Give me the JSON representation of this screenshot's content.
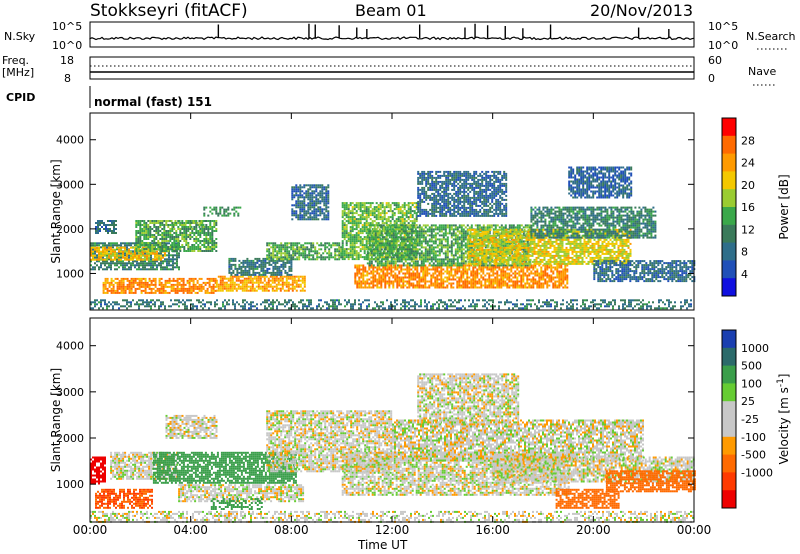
{
  "header": {
    "station": "Stokkseyri (fitACF)",
    "beam": "Beam 01",
    "date": "20/Nov/2013"
  },
  "top_panels": {
    "nsky_label": "N.Sky",
    "nsky_ticks": [
      "10^5",
      "10^0"
    ],
    "nsearch_label": "N.Search",
    "nsearch_ticks": [
      "10^5",
      "10^0"
    ],
    "freq_label_1": "Freq.",
    "freq_label_2": "[MHz]",
    "freq_ticks": [
      "18",
      "8"
    ],
    "nave_label": "Nave",
    "nave_ticks": [
      "60",
      "0"
    ],
    "cpid_label": "CPID",
    "cpid_value": "normal (fast) 151",
    "nsky_spikes": [
      {
        "x": 5.1,
        "v": 0.9
      },
      {
        "x": 8.7,
        "v": 0.95
      },
      {
        "x": 8.95,
        "v": 0.9
      },
      {
        "x": 9.9,
        "v": 0.85
      },
      {
        "x": 10.6,
        "v": 0.7
      },
      {
        "x": 11.0,
        "v": 0.6
      },
      {
        "x": 13.1,
        "v": 0.9
      },
      {
        "x": 14.9,
        "v": 0.7
      },
      {
        "x": 15.3,
        "v": 0.95
      },
      {
        "x": 15.8,
        "v": 0.85
      },
      {
        "x": 16.5,
        "v": 0.8
      },
      {
        "x": 17.2,
        "v": 0.65
      },
      {
        "x": 18.3,
        "v": 0.9
      },
      {
        "x": 21.8,
        "v": 0.7
      },
      {
        "x": 23.0,
        "v": 0.6
      }
    ]
  },
  "power_scale": {
    "label": "Power [dB]",
    "ticks": [
      "28",
      "24",
      "20",
      "16",
      "12",
      "8",
      "4"
    ],
    "colors": [
      "#ff0000",
      "#ff6a00",
      "#ff9a00",
      "#f4c800",
      "#9acc32",
      "#3aa84a",
      "#3a7a5a",
      "#2f6e8a",
      "#2050b8",
      "#1010e0"
    ]
  },
  "velocity_scale": {
    "label": "Velocity [m s^-1]",
    "ticks": [
      "1000",
      "500",
      "100",
      "25",
      "-25",
      "-100",
      "-500",
      "-1000"
    ],
    "colors": [
      "#1a3fb0",
      "#2b6a6a",
      "#3a9e4a",
      "#66cc33",
      "#c8c8c8",
      "#c8c8c8",
      "#ff9a00",
      "#ff6a00",
      "#ff3a00",
      "#ee0000"
    ]
  },
  "chart_data": [
    {
      "type": "heatmap",
      "title": "Power",
      "xlabel": "Time UT",
      "ylabel": "Slant Range [km]",
      "xlim": [
        0,
        24
      ],
      "ylim": [
        180,
        4600
      ],
      "xticks": [
        "00:00",
        "04:00",
        "08:00",
        "12:00",
        "16:00",
        "20:00",
        "00:00"
      ],
      "yticks": [
        "1000",
        "2000",
        "3000",
        "4000"
      ],
      "colorbar": {
        "label": "Power [dB]",
        "range": [
          0,
          32
        ]
      },
      "regions": [
        {
          "t0": 0.0,
          "t1": 3.5,
          "r0": 1100,
          "r1": 1700,
          "v": 10
        },
        {
          "t0": 0.0,
          "t1": 3.0,
          "r0": 1300,
          "r1": 1600,
          "v": 22
        },
        {
          "t0": 0.5,
          "t1": 5.0,
          "r0": 550,
          "r1": 900,
          "v": 26
        },
        {
          "t0": 0.2,
          "t1": 1.0,
          "r0": 1900,
          "r1": 2200,
          "v": 8
        },
        {
          "t0": 1.8,
          "t1": 5.0,
          "r0": 1500,
          "r1": 2200,
          "v": 14
        },
        {
          "t0": 3.2,
          "t1": 4.6,
          "r0": 2050,
          "r1": 2200,
          "v": 16
        },
        {
          "t0": 4.5,
          "t1": 6.0,
          "r0": 2300,
          "r1": 2500,
          "v": 12
        },
        {
          "t0": 5.0,
          "t1": 8.5,
          "r0": 600,
          "r1": 950,
          "v": 24
        },
        {
          "t0": 5.5,
          "t1": 8.0,
          "r0": 950,
          "r1": 1350,
          "v": 9
        },
        {
          "t0": 7.0,
          "t1": 10.0,
          "r0": 1300,
          "r1": 1700,
          "v": 14
        },
        {
          "t0": 8.0,
          "t1": 9.5,
          "r0": 2200,
          "r1": 3000,
          "v": 7
        },
        {
          "t0": 10.0,
          "t1": 13.0,
          "r0": 1300,
          "r1": 2600,
          "v": 16
        },
        {
          "t0": 10.5,
          "t1": 19.0,
          "r0": 700,
          "r1": 1200,
          "v": 26
        },
        {
          "t0": 11.0,
          "t1": 17.5,
          "r0": 1200,
          "r1": 2100,
          "v": 14
        },
        {
          "t0": 13.0,
          "t1": 16.5,
          "r0": 2300,
          "r1": 3300,
          "v": 7
        },
        {
          "t0": 15.0,
          "t1": 21.5,
          "r0": 1200,
          "r1": 2000,
          "v": 20
        },
        {
          "t0": 17.5,
          "t1": 22.5,
          "r0": 1800,
          "r1": 2500,
          "v": 10
        },
        {
          "t0": 19.0,
          "t1": 21.5,
          "r0": 2700,
          "r1": 3400,
          "v": 6
        },
        {
          "t0": 20.0,
          "t1": 24.0,
          "r0": 850,
          "r1": 1300,
          "v": 7
        },
        {
          "t0": 0.0,
          "t1": 24.0,
          "r0": 200,
          "r1": 420,
          "v": 9
        }
      ]
    },
    {
      "type": "heatmap",
      "title": "Velocity",
      "xlabel": "Time UT",
      "ylabel": "Slant Range [km]",
      "xlim": [
        0,
        24
      ],
      "ylim": [
        180,
        4600
      ],
      "xticks": [
        "00:00",
        "04:00",
        "08:00",
        "12:00",
        "16:00",
        "20:00",
        "00:00"
      ],
      "yticks": [
        "1000",
        "2000",
        "3000",
        "4000"
      ],
      "colorbar": {
        "label": "Velocity [m s^-1]",
        "range": [
          -1000,
          1000
        ]
      },
      "regions": [
        {
          "t0": 0.0,
          "t1": 0.6,
          "r0": 1000,
          "r1": 1600,
          "v": -900
        },
        {
          "t0": 0.2,
          "t1": 2.5,
          "r0": 500,
          "r1": 900,
          "v": -500
        },
        {
          "t0": 0.8,
          "t1": 3.5,
          "r0": 1100,
          "r1": 1700,
          "v": 0
        },
        {
          "t0": 3.0,
          "t1": 5.0,
          "r0": 2000,
          "r1": 2500,
          "v": 0
        },
        {
          "t0": 2.5,
          "t1": 8.2,
          "r0": 1050,
          "r1": 1700,
          "v": 120
        },
        {
          "t0": 3.5,
          "t1": 8.5,
          "r0": 650,
          "r1": 1000,
          "v": 0
        },
        {
          "t0": 7.0,
          "t1": 12.0,
          "r0": 1300,
          "r1": 2600,
          "v": 0
        },
        {
          "t0": 10.0,
          "t1": 19.0,
          "r0": 750,
          "r1": 1700,
          "v": 0
        },
        {
          "t0": 12.0,
          "t1": 22.0,
          "r0": 1500,
          "r1": 2400,
          "v": 0
        },
        {
          "t0": 13.0,
          "t1": 17.0,
          "r0": 2300,
          "r1": 3400,
          "v": 0
        },
        {
          "t0": 16.0,
          "t1": 24.0,
          "r0": 1050,
          "r1": 1600,
          "v": 0
        },
        {
          "t0": 18.5,
          "t1": 21.0,
          "r0": 500,
          "r1": 900,
          "v": -300
        },
        {
          "t0": 20.5,
          "t1": 24.0,
          "r0": 850,
          "r1": 1300,
          "v": -250
        },
        {
          "t0": 4.8,
          "t1": 6.8,
          "r0": 450,
          "r1": 700,
          "v": 150
        },
        {
          "t0": 0.0,
          "t1": 24.0,
          "r0": 200,
          "r1": 420,
          "v": 0
        }
      ]
    }
  ]
}
